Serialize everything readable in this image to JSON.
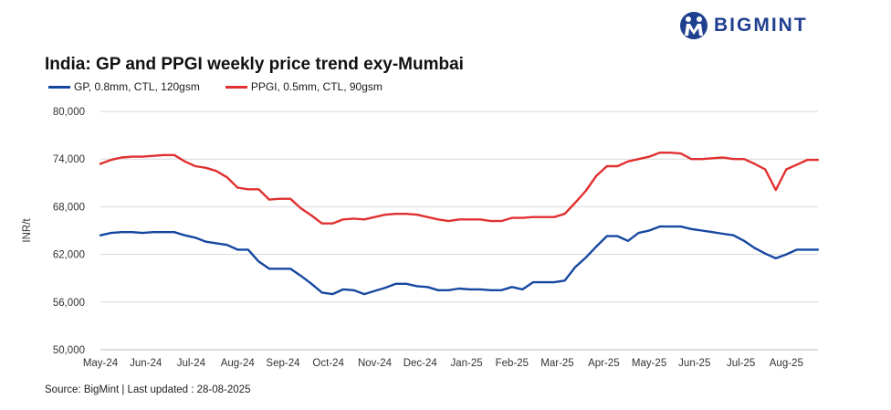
{
  "brand": {
    "name": "BIGMINT",
    "color": "#1f3f8f"
  },
  "source": "Source: BigMint | Last updated : 28-08-2025",
  "chart_data": {
    "type": "line",
    "title": "India: GP and PPGI weekly price trend exy-Mumbai",
    "ylabel": "INR/t",
    "xlabel": "",
    "ylim": [
      50000,
      80000
    ],
    "yticks": [
      50000,
      56000,
      62000,
      68000,
      74000,
      80000
    ],
    "ytick_labels": [
      "50,000",
      "56,000",
      "62,000",
      "68,000",
      "74,000",
      "80,000"
    ],
    "grid": true,
    "legend_position": "top-left",
    "x_tick_labels": [
      "May-24",
      "Jun-24",
      "Jul-24",
      "Aug-24",
      "Sep-24",
      "Oct-24",
      "Nov-24",
      "Dec-24",
      "Jan-25",
      "Feb-25",
      "Mar-25",
      "Apr-25",
      "May-25",
      "Jun-25",
      "Jul-25",
      "Aug-25"
    ],
    "x_tick_positions": [
      0,
      4.3,
      8.6,
      13,
      17.3,
      21.6,
      26,
      30.3,
      34.7,
      39,
      43.3,
      47.7,
      52,
      56.3,
      60.7,
      65
    ],
    "x_range": [
      0,
      68
    ],
    "series": [
      {
        "name": "GP, 0.8mm, CTL, 120gsm",
        "color": "#1647a0",
        "values": [
          64400,
          64700,
          64800,
          64800,
          64700,
          64800,
          64800,
          64800,
          64400,
          64100,
          63600,
          63400,
          63200,
          62600,
          62600,
          61100,
          60200,
          60200,
          60200,
          59300,
          58300,
          57200,
          57000,
          57600,
          57500,
          57000,
          57400,
          57800,
          58300,
          58300,
          58000,
          57900,
          57500,
          57500,
          57700,
          57600,
          57600,
          57500,
          57500,
          57900,
          57600,
          58500,
          58500,
          58500,
          58700,
          60400,
          61600,
          63000,
          64300,
          64300,
          63700,
          64700,
          65000,
          65500,
          65500,
          65500,
          65200,
          65000,
          64800,
          64600,
          64400,
          63700,
          62800,
          62100,
          61500,
          62000,
          62600,
          62600,
          62600
        ]
      },
      {
        "name": "PPGI, 0.5mm, CTL, 90gsm",
        "color": "#e03030",
        "values": [
          73400,
          73900,
          74200,
          74300,
          74300,
          74400,
          74500,
          74500,
          73700,
          73100,
          72900,
          72500,
          71700,
          70400,
          70200,
          70200,
          68900,
          69000,
          69000,
          67800,
          66900,
          65900,
          65900,
          66400,
          66500,
          66400,
          66700,
          67000,
          67100,
          67100,
          67000,
          66700,
          66400,
          66200,
          66400,
          66400,
          66400,
          66200,
          66200,
          66600,
          66600,
          66700,
          66700,
          66700,
          67100,
          68500,
          70000,
          71900,
          73100,
          73100,
          73700,
          74000,
          74300,
          74800,
          74800,
          74700,
          74000,
          74000,
          74100,
          74200,
          74000,
          74000,
          73400,
          72700,
          70100,
          72700,
          73300,
          73900,
          73900
        ]
      }
    ]
  }
}
